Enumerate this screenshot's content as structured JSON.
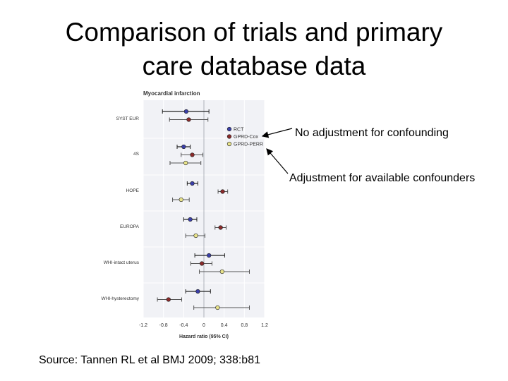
{
  "slide": {
    "title_line1": "Comparison of trials and primary",
    "title_line2": "care database data",
    "source": "Source: Tannen RL et al BMJ 2009; 338:b81"
  },
  "annotations": [
    {
      "text": "No adjustment for confounding",
      "points_to": "GPRD-Cox"
    },
    {
      "text": "Adjustment for available confounders",
      "points_to": "GPRD-PERR"
    }
  ],
  "chart_data": {
    "type": "scatter",
    "title": "Myocardial infarction",
    "xlabel": "Hazard ratio (95% CI)",
    "xlim": [
      -1.2,
      1.2
    ],
    "xticks": [
      "-1.2",
      "-0.8",
      "-0.4",
      "0",
      "0.4",
      "0.8",
      "1.2"
    ],
    "legend_position": "top-right",
    "series": [
      {
        "name": "RCT",
        "color": "#3a3fa8"
      },
      {
        "name": "GPRD-Cox",
        "color": "#8b2a2a"
      },
      {
        "name": "GPRD-PERR",
        "color": "#e8e38a"
      }
    ],
    "trials": [
      {
        "label": "SYST EUR",
        "estimates": [
          {
            "series": "RCT",
            "value": -0.35,
            "low": -0.82,
            "high": 0.1
          },
          {
            "series": "GPRD-Cox",
            "value": -0.3,
            "low": -0.68,
            "high": 0.08
          }
        ]
      },
      {
        "label": "4S",
        "estimates": [
          {
            "series": "RCT",
            "value": -0.4,
            "low": -0.53,
            "high": -0.27
          },
          {
            "series": "GPRD-Cox",
            "value": -0.23,
            "low": -0.45,
            "high": -0.02
          },
          {
            "series": "GPRD-PERR",
            "value": -0.36,
            "low": -0.67,
            "high": -0.06
          }
        ]
      },
      {
        "label": "HOPE",
        "estimates": [
          {
            "series": "RCT",
            "value": -0.23,
            "low": -0.33,
            "high": -0.12
          },
          {
            "series": "GPRD-Cox",
            "value": 0.37,
            "low": 0.28,
            "high": 0.47
          },
          {
            "series": "GPRD-PERR",
            "value": -0.45,
            "low": -0.62,
            "high": -0.29
          }
        ]
      },
      {
        "label": "EUROPA",
        "estimates": [
          {
            "series": "RCT",
            "value": -0.27,
            "low": -0.4,
            "high": -0.14
          },
          {
            "series": "GPRD-Cox",
            "value": 0.33,
            "low": 0.22,
            "high": 0.44
          },
          {
            "series": "GPRD-PERR",
            "value": -0.16,
            "low": -0.36,
            "high": 0.02
          }
        ]
      },
      {
        "label": "WHI-intact uterus",
        "estimates": [
          {
            "series": "RCT",
            "value": 0.1,
            "low": -0.18,
            "high": 0.41
          },
          {
            "series": "GPRD-Cox",
            "value": -0.04,
            "low": -0.26,
            "high": 0.16
          },
          {
            "series": "GPRD-PERR",
            "value": 0.36,
            "low": -0.09,
            "high": 0.9
          }
        ]
      },
      {
        "label": "WHI-hysterectomy",
        "estimates": [
          {
            "series": "RCT",
            "value": -0.12,
            "low": -0.36,
            "high": 0.13
          },
          {
            "series": "GPRD-Cox",
            "value": -0.7,
            "low": -0.92,
            "high": -0.44
          },
          {
            "series": "GPRD-PERR",
            "value": 0.27,
            "low": -0.2,
            "high": 0.9
          }
        ]
      }
    ]
  }
}
